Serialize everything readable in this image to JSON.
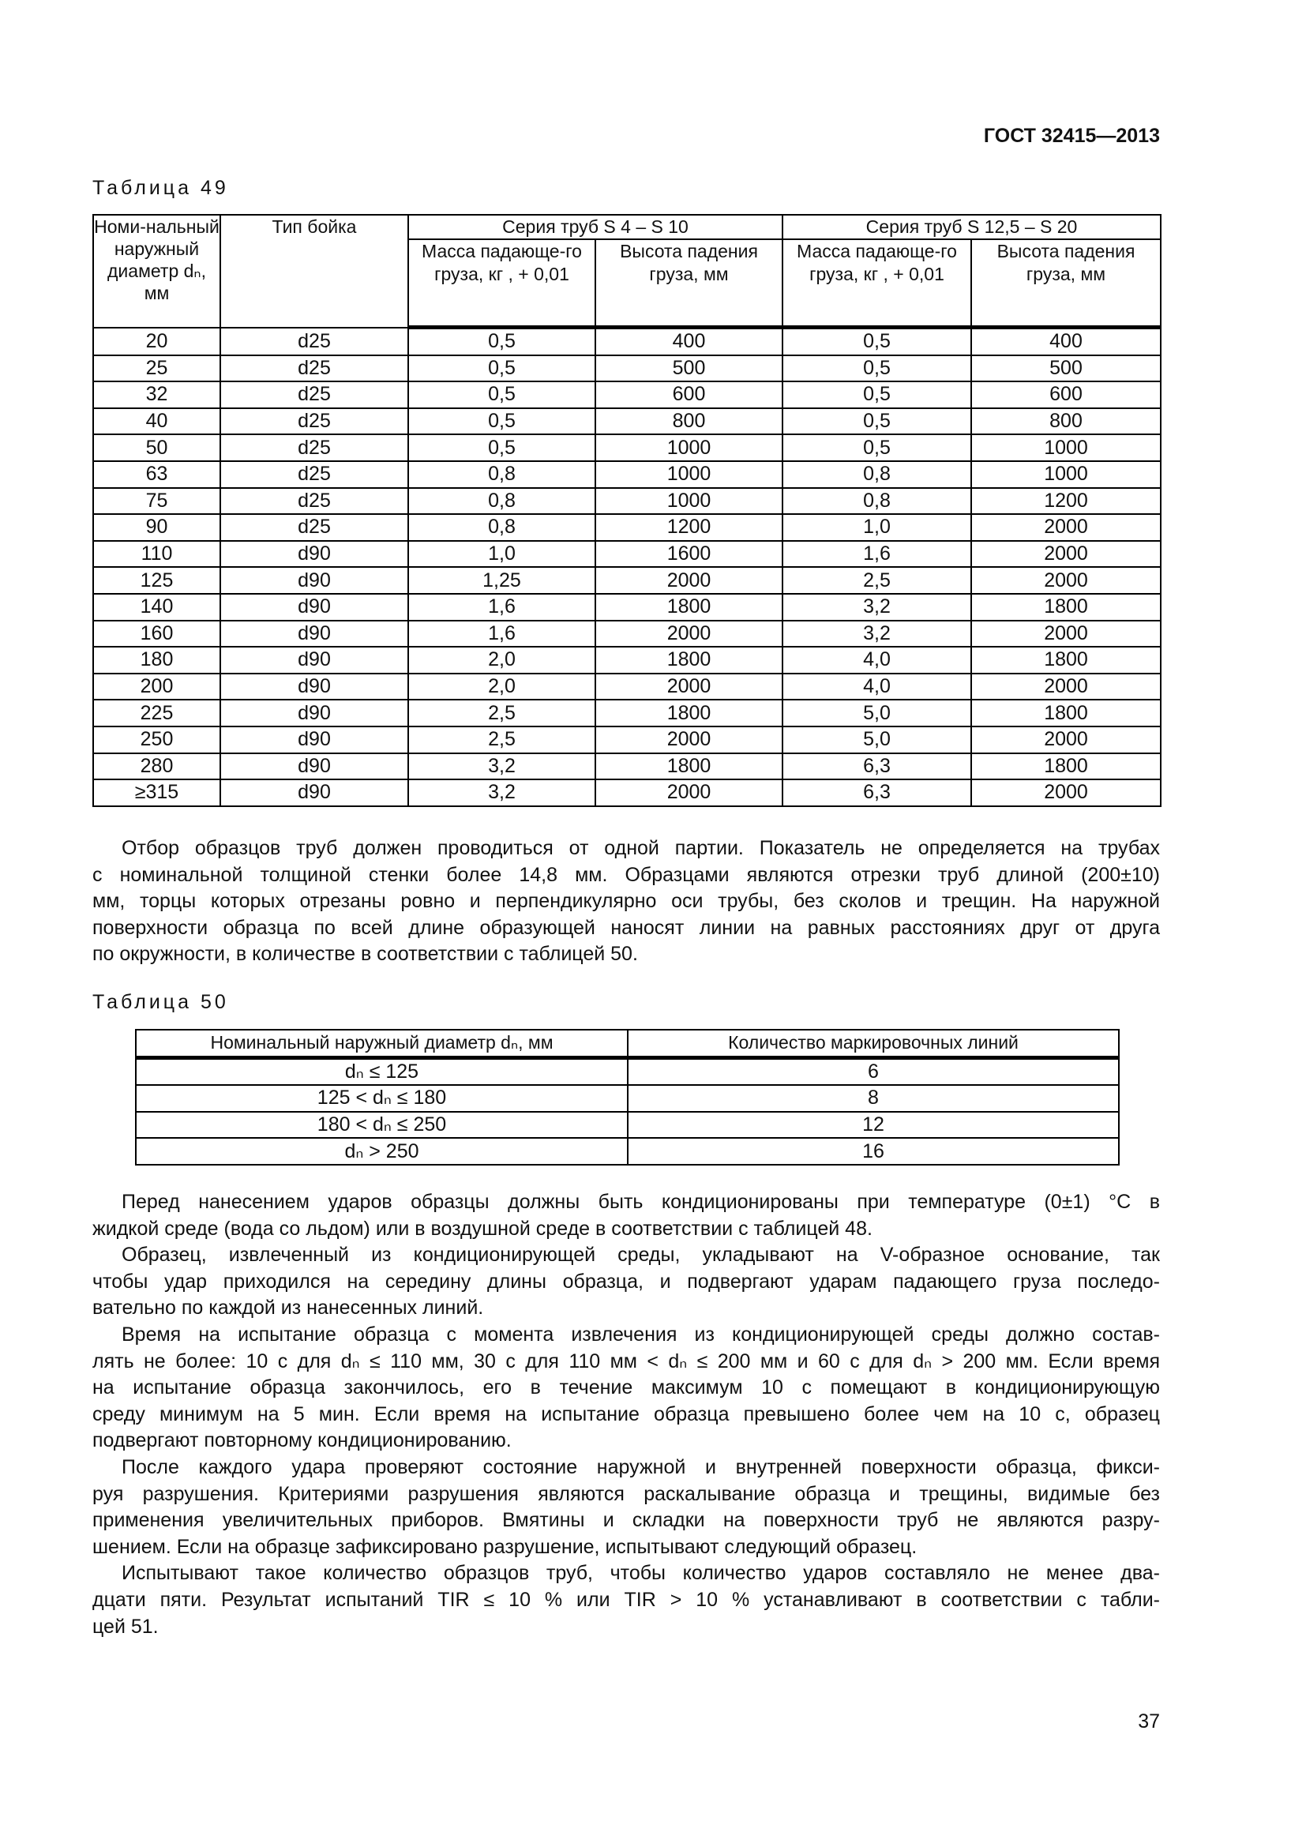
{
  "header": {
    "doc_code": "ГОСТ 32415—2013"
  },
  "table49": {
    "caption": "Таблица 49",
    "headers": {
      "diameter": "Номи-нальный наружный диаметр dₙ, мм",
      "striker": "Тип бойка",
      "series1": "Серия труб S 4 – S 10",
      "series2": "Серия труб S 12,5 – S 20",
      "mass": "Масса падающе-го груза, кг , + 0,01",
      "height": "Высота падения груза, мм"
    },
    "rows": [
      [
        "20",
        "d25",
        "0,5",
        "400",
        "0,5",
        "400"
      ],
      [
        "25",
        "d25",
        "0,5",
        "500",
        "0,5",
        "500"
      ],
      [
        "32",
        "d25",
        "0,5",
        "600",
        "0,5",
        "600"
      ],
      [
        "40",
        "d25",
        "0,5",
        "800",
        "0,5",
        "800"
      ],
      [
        "50",
        "d25",
        "0,5",
        "1000",
        "0,5",
        "1000"
      ],
      [
        "63",
        "d25",
        "0,8",
        "1000",
        "0,8",
        "1000"
      ],
      [
        "75",
        "d25",
        "0,8",
        "1000",
        "0,8",
        "1200"
      ],
      [
        "90",
        "d25",
        "0,8",
        "1200",
        "1,0",
        "2000"
      ],
      [
        "110",
        "d90",
        "1,0",
        "1600",
        "1,6",
        "2000"
      ],
      [
        "125",
        "d90",
        "1,25",
        "2000",
        "2,5",
        "2000"
      ],
      [
        "140",
        "d90",
        "1,6",
        "1800",
        "3,2",
        "1800"
      ],
      [
        "160",
        "d90",
        "1,6",
        "2000",
        "3,2",
        "2000"
      ],
      [
        "180",
        "d90",
        "2,0",
        "1800",
        "4,0",
        "1800"
      ],
      [
        "200",
        "d90",
        "2,0",
        "2000",
        "4,0",
        "2000"
      ],
      [
        "225",
        "d90",
        "2,5",
        "1800",
        "5,0",
        "1800"
      ],
      [
        "250",
        "d90",
        "2,5",
        "2000",
        "5,0",
        "2000"
      ],
      [
        "280",
        "d90",
        "3,2",
        "1800",
        "6,3",
        "1800"
      ],
      [
        "≥315",
        "d90",
        "3,2",
        "2000",
        "6,3",
        "2000"
      ]
    ]
  },
  "paragraph1": [
    "Отбор образцов труб должен проводиться от одной партии. Показатель не определяется на трубах",
    "с номинальной толщиной стенки более 14,8 мм. Образцами являются отрезки труб длиной (200±10)",
    "мм, торцы которых отрезаны ровно и перпендикулярно оси трубы, без сколов и трещин. На наружной",
    "поверхности образца по всей длине образующей наносят линии на равных расстояниях друг от друга",
    "по окружности, в количестве в соответствии с таблицей 50."
  ],
  "table50": {
    "caption": "Таблица 50",
    "headers": [
      "Номинальный наружный диаметр dₙ, мм",
      "Количество маркировочных линий"
    ],
    "rows": [
      [
        "dₙ ≤ 125",
        "6"
      ],
      [
        "125 < dₙ ≤ 180",
        "8"
      ],
      [
        "180 < dₙ ≤ 250",
        "12"
      ],
      [
        "dₙ > 250",
        "16"
      ]
    ]
  },
  "paragraphs": [
    [
      "Перед нанесением ударов образцы должны быть кондиционированы при температуре (0±1) °С в",
      "жидкой среде (вода со льдом) или в воздушной среде в соответствии с таблицей 48."
    ],
    [
      "Образец, извлеченный из кондиционирующей среды, укладывают на V-образное основание, так",
      "чтобы удар приходился на середину длины образца, и подвергают ударам падающего груза последо-",
      "вательно по каждой из нанесенных линий."
    ],
    [
      "Время на испытание образца с момента извлечения из кондиционирующей среды должно состав-",
      "лять не более: 10 с для dₙ ≤ 110 мм, 30 с для 110 мм < dₙ ≤ 200 мм и 60 с для dₙ > 200 мм. Если время",
      "на испытание образца закончилось, его в течение максимум 10 с помещают в кондиционирующую",
      "среду минимум на 5 мин. Если время на испытание образца превышено более чем на 10 с, образец",
      "подвергают повторному кондиционированию."
    ],
    [
      "После каждого удара проверяют состояние наружной и внутренней поверхности образца, фикси-",
      "руя разрушения. Критериями разрушения являются раскалывание образца и трещины, видимые без",
      "применения увеличительных приборов. Вмятины и складки на поверхности труб не являются разру-",
      "шением. Если на образце зафиксировано разрушение, испытывают следующий образец."
    ],
    [
      "Испытывают такое количество образцов труб, чтобы количество ударов составляло не менее два-",
      "дцати пяти. Результат испытаний TIR ≤ 10 % или TIR > 10 % устанавливают в соответствии с табли-",
      "цей 51."
    ]
  ],
  "page_number": "37"
}
